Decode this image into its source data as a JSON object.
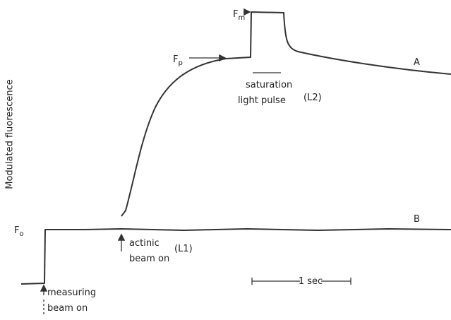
{
  "y_axis_label": "Modulated fluorescence",
  "levels": {
    "fm": {
      "symbol": "F",
      "subscript": "m"
    },
    "fp": {
      "symbol": "F",
      "subscript": "p"
    },
    "fo": {
      "symbol": "F",
      "subscript": "o"
    }
  },
  "traces": {
    "a": "A",
    "b": "B"
  },
  "annotations": {
    "saturation": {
      "lines": [
        "saturation",
        "light pulse"
      ],
      "tag": "(L2)"
    },
    "actinic": {
      "lines": [
        "actinic",
        "beam on"
      ],
      "tag": "(L1)"
    },
    "measuring": {
      "lines": [
        "measuring",
        "beam on"
      ]
    },
    "scale": "1 sec"
  }
}
